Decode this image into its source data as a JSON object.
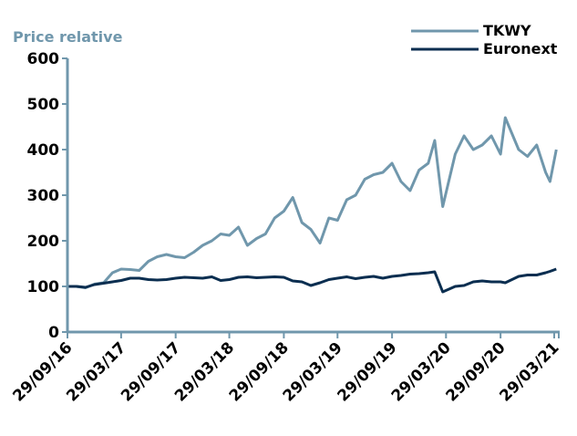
{
  "chart_data": {
    "type": "line",
    "title": "",
    "xlabel": "",
    "ylabel": "Price relative",
    "ylim": [
      0,
      600
    ],
    "yticks": [
      "0",
      "100",
      "200",
      "300",
      "400",
      "500",
      "600"
    ],
    "xlim": [
      "2016-09-29",
      "2021-04-15"
    ],
    "xticks": [
      {
        "date": "2016-09-29",
        "label": "29/09/16"
      },
      {
        "date": "2017-03-29",
        "label": "29/03/17"
      },
      {
        "date": "2017-09-29",
        "label": "29/09/17"
      },
      {
        "date": "2018-03-29",
        "label": "29/03/18"
      },
      {
        "date": "2018-09-29",
        "label": "29/09/18"
      },
      {
        "date": "2019-03-29",
        "label": "29/03/19"
      },
      {
        "date": "2019-09-29",
        "label": "29/09/19"
      },
      {
        "date": "2020-03-29",
        "label": "29/03/20"
      },
      {
        "date": "2020-09-29",
        "label": "29/09/20"
      },
      {
        "date": "2021-03-29",
        "label": "29/03/21"
      }
    ],
    "grid": false,
    "legend_position": "top-right",
    "x": [
      "2016-09-29",
      "2016-10-29",
      "2016-11-29",
      "2016-12-29",
      "2017-01-29",
      "2017-02-28",
      "2017-03-29",
      "2017-04-29",
      "2017-05-29",
      "2017-06-29",
      "2017-07-29",
      "2017-08-29",
      "2017-09-29",
      "2017-10-29",
      "2017-11-29",
      "2017-12-29",
      "2018-01-29",
      "2018-02-28",
      "2018-03-29",
      "2018-04-29",
      "2018-05-29",
      "2018-06-29",
      "2018-07-29",
      "2018-08-29",
      "2018-09-29",
      "2018-10-29",
      "2018-11-29",
      "2018-12-29",
      "2019-01-29",
      "2019-02-28",
      "2019-03-29",
      "2019-04-29",
      "2019-05-29",
      "2019-06-29",
      "2019-07-29",
      "2019-08-29",
      "2019-09-29",
      "2019-10-29",
      "2019-11-29",
      "2019-12-29",
      "2020-01-29",
      "2020-02-20",
      "2020-03-18",
      "2020-04-29",
      "2020-05-29",
      "2020-06-29",
      "2020-07-29",
      "2020-08-29",
      "2020-09-29",
      "2020-10-15",
      "2020-11-29",
      "2020-12-29",
      "2021-01-29",
      "2021-02-28",
      "2021-03-15",
      "2021-04-05"
    ],
    "series": [
      {
        "name": "TKWY",
        "color": "#7097AC",
        "values": [
          100,
          100,
          97,
          105,
          108,
          130,
          138,
          137,
          135,
          155,
          165,
          170,
          165,
          163,
          175,
          190,
          200,
          215,
          212,
          230,
          190,
          205,
          215,
          250,
          265,
          295,
          240,
          225,
          195,
          250,
          245,
          290,
          300,
          335,
          345,
          350,
          370,
          330,
          310,
          355,
          370,
          420,
          275,
          390,
          430,
          400,
          410,
          430,
          390,
          470,
          400,
          385,
          410,
          350,
          330,
          400
        ]
      },
      {
        "name": "Euronext",
        "color": "#0B2E50",
        "values": [
          100,
          100,
          98,
          104,
          107,
          110,
          113,
          118,
          118,
          115,
          114,
          115,
          118,
          120,
          119,
          118,
          121,
          113,
          115,
          120,
          121,
          119,
          120,
          121,
          120,
          112,
          110,
          102,
          108,
          115,
          118,
          121,
          117,
          120,
          122,
          118,
          122,
          124,
          127,
          128,
          130,
          132,
          88,
          100,
          102,
          110,
          112,
          110,
          110,
          108,
          122,
          125,
          125,
          130,
          133,
          138
        ]
      }
    ]
  },
  "colors": {
    "axis": "#7097AC",
    "ylabel": "#7097AC"
  }
}
